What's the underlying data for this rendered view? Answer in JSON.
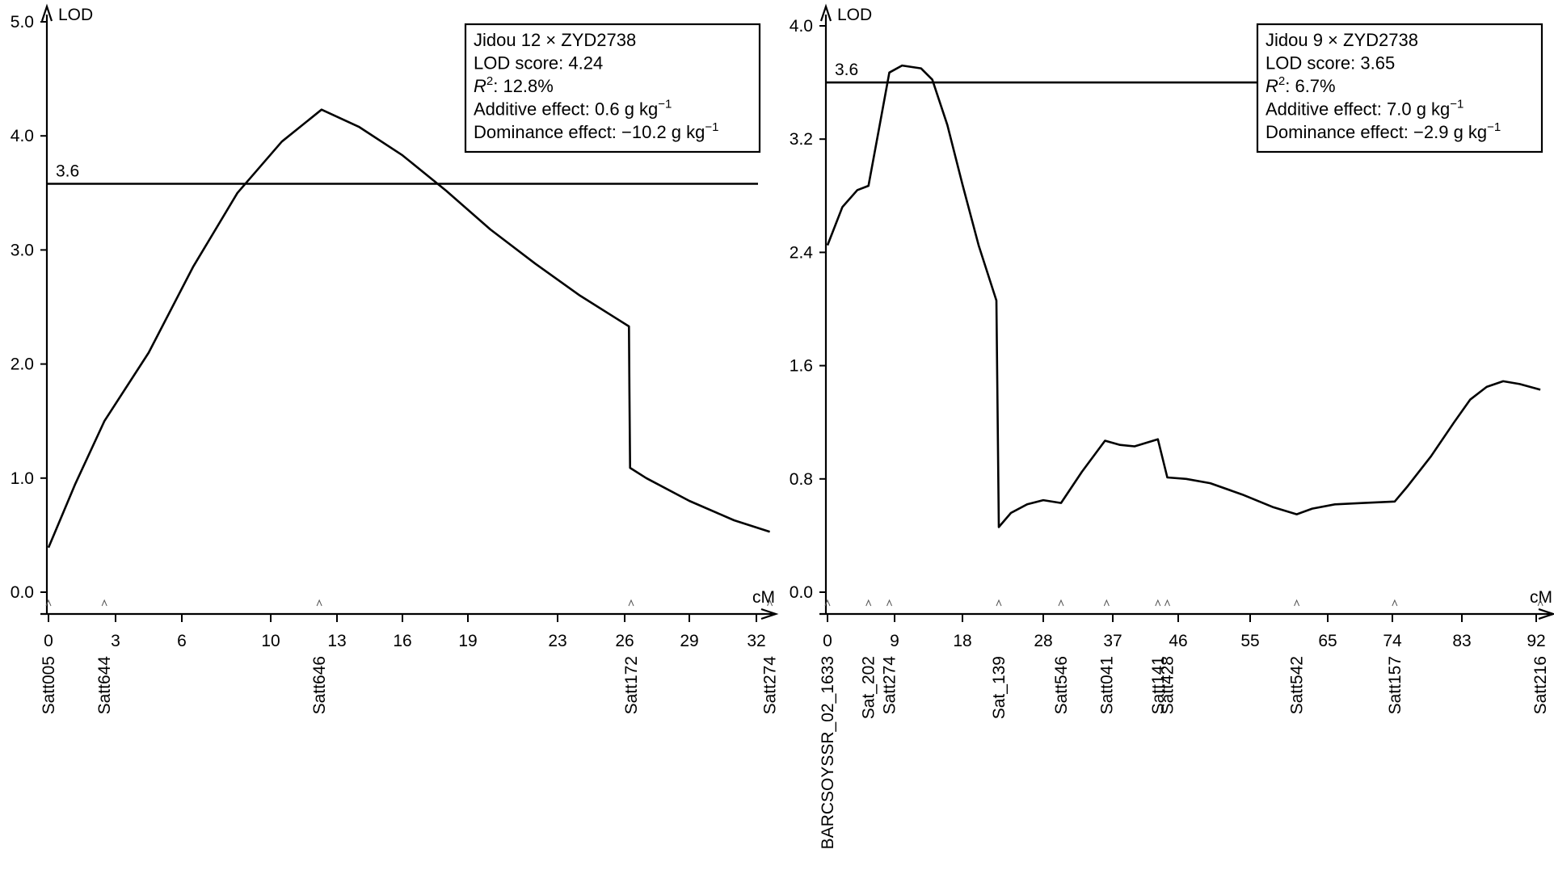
{
  "chart_data": [
    {
      "type": "line",
      "ylabel": "LOD",
      "xlabel": "cM",
      "ylim": [
        0.0,
        5.0
      ],
      "xlim": [
        0,
        32.5
      ],
      "y_ticks": [
        "0.0",
        "1.0",
        "2.0",
        "3.0",
        "4.0",
        "5.0"
      ],
      "y_tick_values": [
        0,
        1,
        2,
        3,
        4,
        5
      ],
      "x_ticks": [
        "0",
        "3",
        "6",
        "10",
        "13",
        "16",
        "19",
        "23",
        "26",
        "29",
        "32"
      ],
      "x_tick_values": [
        0,
        3,
        6,
        10,
        13,
        16,
        19,
        23,
        26,
        29,
        32
      ],
      "threshold": {
        "value": 3.58,
        "label": "3.6"
      },
      "info_box": {
        "cross": "Jidou 12 × ZYD2738",
        "lod": "LOD score: 4.24",
        "r2_symbol": "R",
        "r2_sup": "2",
        "r2_value": ": 12.8%",
        "additive": "Additive effect: 0.6 g kg",
        "additive_sup": "−1",
        "dominance": "Dominance effect: −10.2 g kg",
        "dominance_sup": "−1"
      },
      "markers": [
        {
          "name": "Satt005",
          "pos": 0
        },
        {
          "name": "Satt644",
          "pos": 2.5
        },
        {
          "name": "Satt646",
          "pos": 12.2
        },
        {
          "name": "Satt172",
          "pos": 26.3
        },
        {
          "name": "Satt274",
          "pos": 32.6
        }
      ],
      "curve": {
        "x": [
          0,
          1.2,
          2.5,
          4.5,
          6.5,
          8.5,
          10.5,
          12.3,
          14,
          16,
          18,
          20,
          22,
          24,
          26.2,
          26.22,
          26.25,
          27,
          29,
          31,
          32.6
        ],
        "y": [
          0.39,
          0.95,
          1.5,
          2.1,
          2.85,
          3.5,
          3.95,
          4.23,
          4.08,
          3.83,
          3.52,
          3.18,
          2.88,
          2.6,
          2.33,
          1.75,
          1.09,
          1.0,
          0.8,
          0.63,
          0.53
        ]
      }
    },
    {
      "type": "line",
      "ylabel": "LOD",
      "xlabel": "cM",
      "ylim": [
        0.0,
        4.0
      ],
      "xlim": [
        0,
        93
      ],
      "y_ticks": [
        "0.0",
        "0.8",
        "1.6",
        "2.4",
        "3.2",
        "4.0"
      ],
      "y_tick_values": [
        0,
        0.8,
        1.6,
        2.4,
        3.2,
        4.0
      ],
      "x_ticks": [
        "0",
        "9",
        "18",
        "28",
        "37",
        "46",
        "55",
        "65",
        "74",
        "83",
        "92"
      ],
      "x_tick_values": [
        0,
        9,
        18,
        28,
        37,
        46,
        55,
        65,
        74,
        83,
        92
      ],
      "threshold": {
        "value": 3.6,
        "label": "3.6"
      },
      "info_box": {
        "cross": "Jidou 9 × ZYD2738",
        "lod": "LOD score: 3.65",
        "r2_symbol": "R",
        "r2_sup": "2",
        "r2_value": ": 6.7%",
        "additive": "Additive effect: 7.0 g kg",
        "additive_sup": "−1",
        "dominance": "Dominance effect: −2.9 g kg",
        "dominance_sup": "−1"
      },
      "markers": [
        {
          "name": "BARCSOYSSR_02_1633",
          "pos": 0
        },
        {
          "name": "Sat_202",
          "pos": 5.5
        },
        {
          "name": "Satt274",
          "pos": 8.3
        },
        {
          "name": "Sat_139",
          "pos": 22.5
        },
        {
          "name": "Satt546",
          "pos": 30.3
        },
        {
          "name": "Satt041",
          "pos": 36.2
        },
        {
          "name": "Satt141",
          "pos": 43.2
        },
        {
          "name": "Satt428",
          "pos": 44.5
        },
        {
          "name": "Satt542",
          "pos": 61
        },
        {
          "name": "Satt157",
          "pos": 74.3
        },
        {
          "name": "Satt216",
          "pos": 92.5
        }
      ],
      "curve": {
        "x": [
          0,
          2,
          4,
          5.5,
          7,
          8.3,
          10,
          12.5,
          14,
          16,
          18,
          20,
          22.2,
          22.5,
          24,
          26,
          28,
          30.3,
          33,
          36,
          38,
          40,
          43.2,
          44.5,
          47,
          50,
          54,
          58,
          61,
          63,
          66,
          70,
          74.3,
          76,
          79,
          82,
          84,
          86,
          88,
          90,
          92.5
        ],
        "y": [
          2.45,
          2.72,
          2.84,
          2.87,
          3.3,
          3.67,
          3.72,
          3.7,
          3.62,
          3.3,
          2.88,
          2.45,
          2.06,
          0.46,
          0.56,
          0.62,
          0.65,
          0.63,
          0.85,
          1.07,
          1.04,
          1.03,
          1.08,
          0.81,
          0.8,
          0.77,
          0.69,
          0.6,
          0.55,
          0.59,
          0.62,
          0.63,
          0.64,
          0.75,
          0.96,
          1.2,
          1.36,
          1.45,
          1.49,
          1.47,
          1.43
        ]
      }
    }
  ]
}
